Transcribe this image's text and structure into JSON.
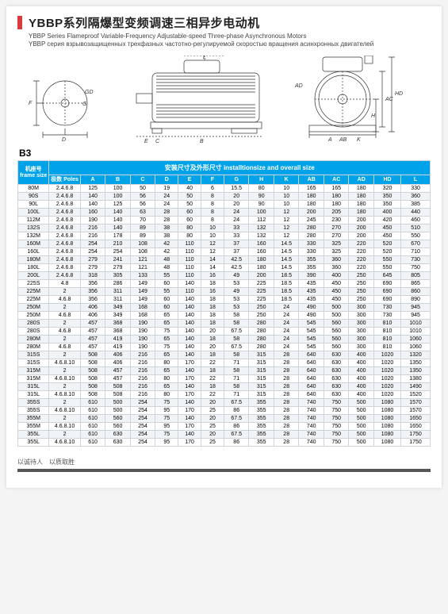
{
  "title_cn": "YBBP系列隔爆型变频调速三相异步电动机",
  "subtitle_en": "YBBP Series Flameproof Variable-Frequency Adjustable-speed Three-phase Asynchronous Motors",
  "subtitle_ru": "YBBP серия взрывозащищенных трехфазных частотно-регулируемой скоростью вращения асинхронных двигателей",
  "mount_label": "B3",
  "header_span": "安装尺寸及外形尺寸 installtionsize and overall size",
  "col_framesize": "机座号\nframe size",
  "col_poles": "极数\nPoles",
  "columns": [
    "A",
    "B",
    "C",
    "D",
    "E",
    "F",
    "G",
    "H",
    "K",
    "AB",
    "AC",
    "AD",
    "HD",
    "L"
  ],
  "rows": [
    [
      "80M",
      "2.4.6.8",
      "125",
      "100",
      "50",
      "19",
      "40",
      "6",
      "15.5",
      "80",
      "10",
      "165",
      "165",
      "180",
      "320",
      "330"
    ],
    [
      "90S",
      "2.4.6.8",
      "140",
      "100",
      "56",
      "24",
      "50",
      "8",
      "20",
      "90",
      "10",
      "180",
      "180",
      "180",
      "350",
      "360"
    ],
    [
      "90L",
      "2.4.6.8",
      "140",
      "125",
      "56",
      "24",
      "50",
      "8",
      "20",
      "90",
      "10",
      "180",
      "180",
      "180",
      "350",
      "385"
    ],
    [
      "100L",
      "2.4.6.8",
      "160",
      "140",
      "63",
      "28",
      "60",
      "8",
      "24",
      "100",
      "12",
      "200",
      "205",
      "180",
      "400",
      "440"
    ],
    [
      "112M",
      "2.4.6.8",
      "190",
      "140",
      "70",
      "28",
      "60",
      "8",
      "24",
      "112",
      "12",
      "245",
      "230",
      "200",
      "420",
      "460"
    ],
    [
      "132S",
      "2.4.6.8",
      "216",
      "140",
      "89",
      "38",
      "80",
      "10",
      "33",
      "132",
      "12",
      "280",
      "270",
      "200",
      "450",
      "510"
    ],
    [
      "132M",
      "2.4.6.8",
      "216",
      "178",
      "89",
      "38",
      "80",
      "10",
      "33",
      "132",
      "12",
      "280",
      "270",
      "200",
      "450",
      "550"
    ],
    [
      "160M",
      "2.4.6.8",
      "254",
      "210",
      "108",
      "42",
      "110",
      "12",
      "37",
      "160",
      "14.5",
      "330",
      "325",
      "220",
      "520",
      "670"
    ],
    [
      "160L",
      "2.4.6.8",
      "254",
      "254",
      "108",
      "42",
      "110",
      "12",
      "37",
      "160",
      "14.5",
      "330",
      "325",
      "220",
      "520",
      "710"
    ],
    [
      "180M",
      "2.4.6.8",
      "279",
      "241",
      "121",
      "48",
      "110",
      "14",
      "42.5",
      "180",
      "14.5",
      "355",
      "360",
      "220",
      "550",
      "730"
    ],
    [
      "180L",
      "2.4.6.8",
      "279",
      "279",
      "121",
      "48",
      "110",
      "14",
      "42.5",
      "180",
      "14.5",
      "355",
      "360",
      "220",
      "550",
      "750"
    ],
    [
      "200L",
      "2.4.6.8",
      "318",
      "305",
      "133",
      "55",
      "110",
      "16",
      "49",
      "200",
      "18.5",
      "390",
      "400",
      "250",
      "645",
      "805"
    ],
    [
      "225S",
      "4.8",
      "356",
      "286",
      "149",
      "60",
      "140",
      "18",
      "53",
      "225",
      "18.5",
      "435",
      "450",
      "250",
      "690",
      "865"
    ],
    [
      "225M",
      "2",
      "356",
      "311",
      "149",
      "55",
      "110",
      "16",
      "49",
      "225",
      "18.5",
      "435",
      "450",
      "250",
      "690",
      "860"
    ],
    [
      "225M",
      "4.6.8",
      "356",
      "311",
      "149",
      "60",
      "140",
      "18",
      "53",
      "225",
      "18.5",
      "435",
      "450",
      "250",
      "690",
      "890"
    ],
    [
      "250M",
      "2",
      "406",
      "349",
      "168",
      "60",
      "140",
      "18",
      "53",
      "250",
      "24",
      "490",
      "500",
      "300",
      "730",
      "945"
    ],
    [
      "250M",
      "4.6.8",
      "406",
      "349",
      "168",
      "65",
      "140",
      "18",
      "58",
      "250",
      "24",
      "490",
      "500",
      "300",
      "730",
      "945"
    ],
    [
      "280S",
      "2",
      "457",
      "368",
      "190",
      "65",
      "140",
      "18",
      "58",
      "280",
      "24",
      "545",
      "560",
      "300",
      "810",
      "1010"
    ],
    [
      "280S",
      "4.6.8",
      "457",
      "368",
      "190",
      "75",
      "140",
      "20",
      "67.5",
      "280",
      "24",
      "545",
      "560",
      "300",
      "810",
      "1010"
    ],
    [
      "280M",
      "2",
      "457",
      "419",
      "190",
      "65",
      "140",
      "18",
      "58",
      "280",
      "24",
      "545",
      "560",
      "300",
      "810",
      "1060"
    ],
    [
      "280M",
      "4.6.8",
      "457",
      "419",
      "190",
      "75",
      "140",
      "20",
      "67.5",
      "280",
      "24",
      "545",
      "560",
      "300",
      "810",
      "1060"
    ],
    [
      "315S",
      "2",
      "508",
      "406",
      "216",
      "65",
      "140",
      "18",
      "58",
      "315",
      "28",
      "640",
      "630",
      "400",
      "1020",
      "1320"
    ],
    [
      "315S",
      "4.6.8.10",
      "508",
      "406",
      "216",
      "80",
      "170",
      "22",
      "71",
      "315",
      "28",
      "640",
      "630",
      "400",
      "1020",
      "1350"
    ],
    [
      "315M",
      "2",
      "508",
      "457",
      "216",
      "65",
      "140",
      "18",
      "58",
      "315",
      "28",
      "640",
      "630",
      "400",
      "1020",
      "1350"
    ],
    [
      "315M",
      "4.6.8.10",
      "508",
      "457",
      "216",
      "80",
      "170",
      "22",
      "71",
      "315",
      "28",
      "640",
      "630",
      "400",
      "1020",
      "1380"
    ],
    [
      "315L",
      "2",
      "508",
      "508",
      "216",
      "65",
      "140",
      "18",
      "58",
      "315",
      "28",
      "640",
      "630",
      "400",
      "1020",
      "1490"
    ],
    [
      "315L",
      "4.6.8.10",
      "508",
      "508",
      "216",
      "80",
      "170",
      "22",
      "71",
      "315",
      "28",
      "640",
      "630",
      "400",
      "1020",
      "1520"
    ],
    [
      "355S",
      "2",
      "610",
      "500",
      "254",
      "75",
      "140",
      "20",
      "67.5",
      "355",
      "28",
      "740",
      "750",
      "500",
      "1080",
      "1570"
    ],
    [
      "355S",
      "4.6.8.10",
      "610",
      "500",
      "254",
      "95",
      "170",
      "25",
      "86",
      "355",
      "28",
      "740",
      "750",
      "500",
      "1080",
      "1570"
    ],
    [
      "355M",
      "2",
      "610",
      "560",
      "254",
      "75",
      "140",
      "20",
      "67.5",
      "355",
      "28",
      "740",
      "750",
      "500",
      "1080",
      "1650"
    ],
    [
      "355M",
      "4.6.8.10",
      "610",
      "560",
      "254",
      "95",
      "170",
      "25",
      "86",
      "355",
      "28",
      "740",
      "750",
      "500",
      "1080",
      "1650"
    ],
    [
      "355L",
      "2",
      "610",
      "630",
      "254",
      "75",
      "140",
      "20",
      "67.5",
      "355",
      "28",
      "740",
      "750",
      "500",
      "1080",
      "1750"
    ],
    [
      "355L",
      "4.6.8.10",
      "610",
      "630",
      "254",
      "95",
      "170",
      "25",
      "86",
      "355",
      "28",
      "740",
      "750",
      "500",
      "1080",
      "1750"
    ]
  ],
  "footer": "以诚待人　以质取胜"
}
